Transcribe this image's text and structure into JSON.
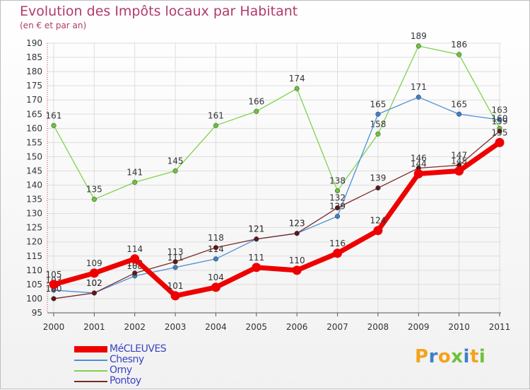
{
  "header": {
    "title": "Evolution des Impôts locaux par Habitant",
    "subtitle": "(en € et par an)"
  },
  "chart_data": {
    "type": "line",
    "title": "Evolution des Impôts locaux par Habitant",
    "subtitle": "(en € et par an)",
    "x": [
      "2000",
      "2001",
      "2002",
      "2003",
      "2004",
      "2005",
      "2006",
      "2007",
      "2008",
      "2009",
      "2010",
      "2011"
    ],
    "ylim": [
      95,
      190
    ],
    "ytick_step": 5,
    "grid": true,
    "series": [
      {
        "name": "Orny",
        "color": "#7fd34a",
        "marker": "#6cc23a",
        "values": [
          161,
          135,
          141,
          145,
          161,
          166,
          174,
          138,
          158,
          189,
          186,
          160
        ]
      },
      {
        "name": "Chesny",
        "color": "#4a90d9",
        "marker": "#3d7fc7",
        "values": [
          103,
          102,
          108,
          111,
          114,
          121,
          123,
          129,
          165,
          171,
          165,
          163
        ]
      },
      {
        "name": "Pontoy",
        "color": "#7b2a2a",
        "marker": "#5e1818",
        "values": [
          100,
          102,
          109,
          113,
          118,
          121,
          123,
          132,
          139,
          146,
          147,
          159
        ]
      },
      {
        "name": "MéCLEUVES",
        "color": "#ee0000",
        "marker": "#ee0000",
        "values": [
          105,
          109,
          114,
          101,
          104,
          111,
          110,
          116,
          124,
          144,
          145,
          155
        ]
      }
    ],
    "legend_order": [
      "MéCLEUVES",
      "Chesny",
      "Orny",
      "Pontoy"
    ],
    "legend_position": "bottom-left"
  },
  "brand": {
    "letters": [
      "P",
      "r",
      "o",
      "x",
      "i",
      "t",
      "i"
    ],
    "colors": [
      "#f5a31a",
      "#3d7fc7",
      "#f5a31a",
      "#6cc23a",
      "#3d7fc7",
      "#f5a31a",
      "#6cc23a"
    ]
  }
}
